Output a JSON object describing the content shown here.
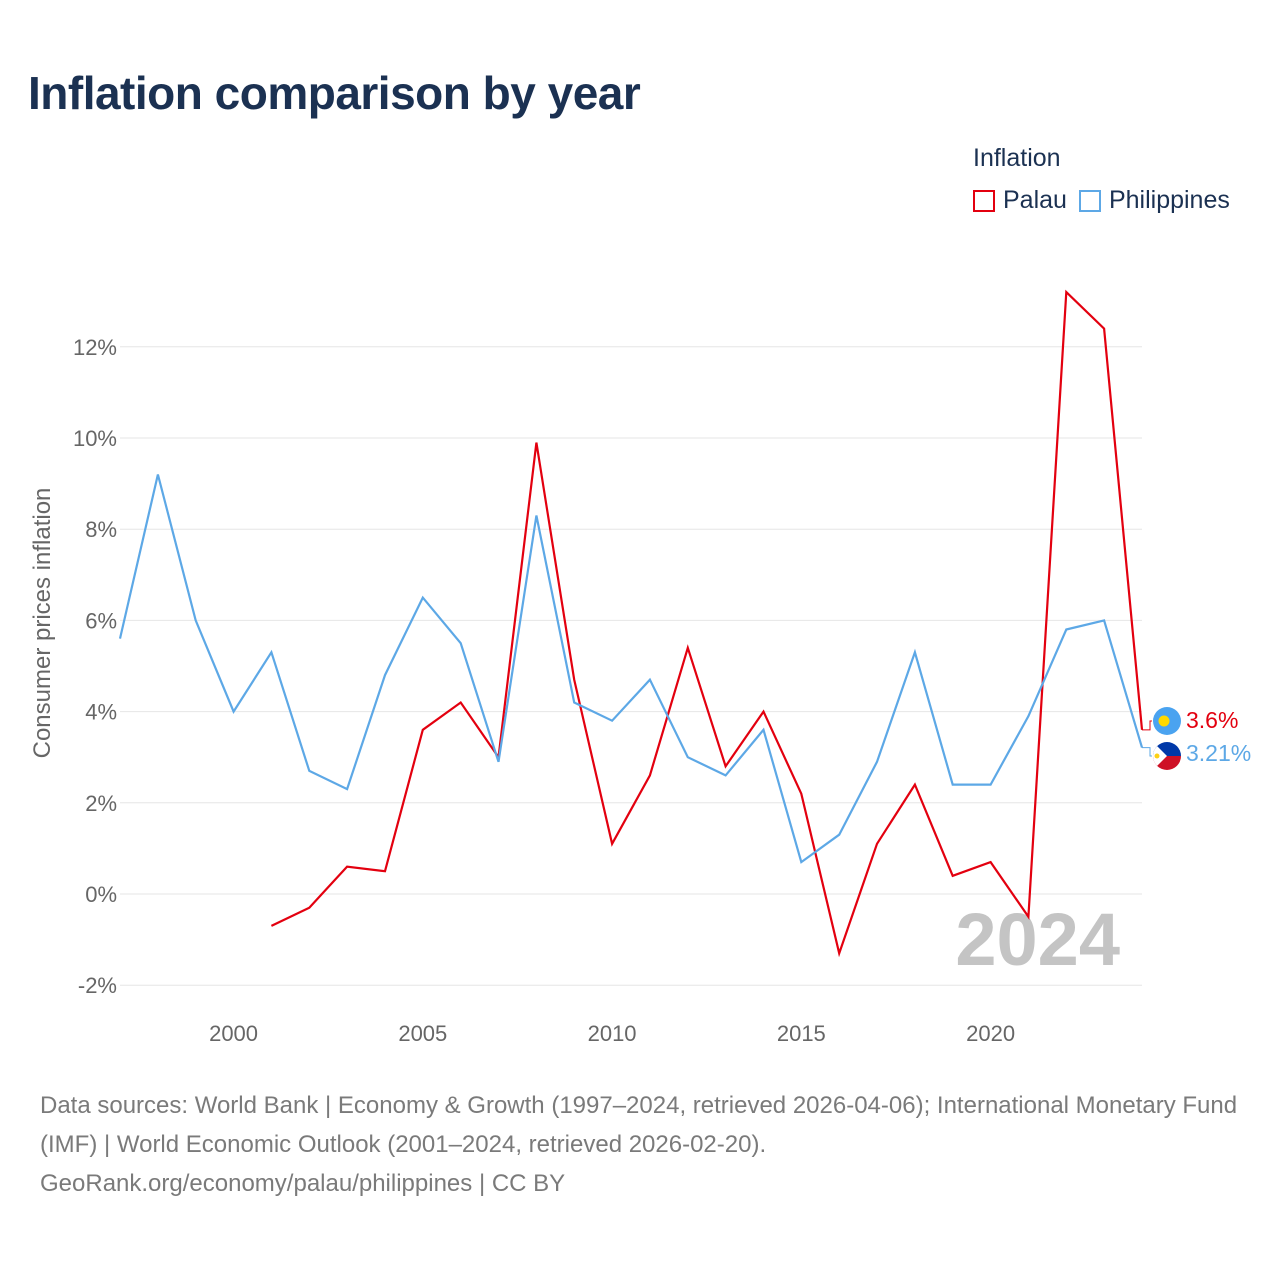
{
  "title": "Inflation comparison by year",
  "legend": {
    "title": "Inflation",
    "items": [
      {
        "name": "Palau",
        "color": "#e3000f"
      },
      {
        "name": "Philippines",
        "color": "#5da8e6"
      }
    ]
  },
  "year_watermark": "2024",
  "footer": {
    "sources": "Data sources: World Bank | Economy & Growth (1997–2024, retrieved 2026-04-06); International Monetary Fund (IMF) | World Economic Outlook (2001–2024, retrieved 2026-02-20).",
    "credit": "GeoRank.org/economy/palau/philippines | CC BY"
  },
  "chart_data": {
    "type": "line",
    "title": "Inflation comparison by year",
    "xlabel": "",
    "ylabel": "Consumer prices inflation",
    "xlim": [
      1997,
      2024
    ],
    "ylim": [
      -2,
      13
    ],
    "x_ticks": [
      {
        "value": 2000,
        "label": "2000"
      },
      {
        "value": 2005,
        "label": "2005"
      },
      {
        "value": 2010,
        "label": "2010"
      },
      {
        "value": 2015,
        "label": "2015"
      },
      {
        "value": 2020,
        "label": "2020"
      }
    ],
    "y_ticks": [
      {
        "value": -2,
        "label": "-2%"
      },
      {
        "value": 0,
        "label": "0%"
      },
      {
        "value": 2,
        "label": "2%"
      },
      {
        "value": 4,
        "label": "4%"
      },
      {
        "value": 6,
        "label": "6%"
      },
      {
        "value": 8,
        "label": "8%"
      },
      {
        "value": 10,
        "label": "10%"
      },
      {
        "value": 12,
        "label": "12%"
      }
    ],
    "grid": true,
    "legend_position": "top-right",
    "series": [
      {
        "name": "Palau",
        "color": "#e3000f",
        "end_label": "3.6%",
        "x": [
          2001,
          2002,
          2003,
          2004,
          2005,
          2006,
          2007,
          2008,
          2009,
          2010,
          2011,
          2012,
          2013,
          2014,
          2015,
          2016,
          2017,
          2018,
          2019,
          2020,
          2021,
          2022,
          2023,
          2024
        ],
        "values": [
          -0.7,
          -0.3,
          0.6,
          0.5,
          3.6,
          4.2,
          3.0,
          9.9,
          4.7,
          1.1,
          2.6,
          5.4,
          2.8,
          4.0,
          2.2,
          -1.3,
          1.1,
          2.4,
          0.4,
          0.7,
          -0.5,
          13.2,
          12.4,
          3.6
        ]
      },
      {
        "name": "Philippines",
        "color": "#5da8e6",
        "end_label": "3.21%",
        "x": [
          1997,
          1998,
          1999,
          2000,
          2001,
          2002,
          2003,
          2004,
          2005,
          2006,
          2007,
          2008,
          2009,
          2010,
          2011,
          2012,
          2013,
          2014,
          2015,
          2016,
          2017,
          2018,
          2019,
          2020,
          2021,
          2022,
          2023,
          2024
        ],
        "values": [
          5.6,
          9.2,
          6.0,
          4.0,
          5.3,
          2.7,
          2.3,
          4.8,
          6.5,
          5.5,
          2.9,
          8.3,
          4.2,
          3.8,
          4.7,
          3.0,
          2.6,
          3.6,
          0.7,
          1.3,
          2.9,
          5.3,
          2.4,
          2.4,
          3.9,
          5.8,
          6.0,
          3.21
        ]
      }
    ]
  }
}
